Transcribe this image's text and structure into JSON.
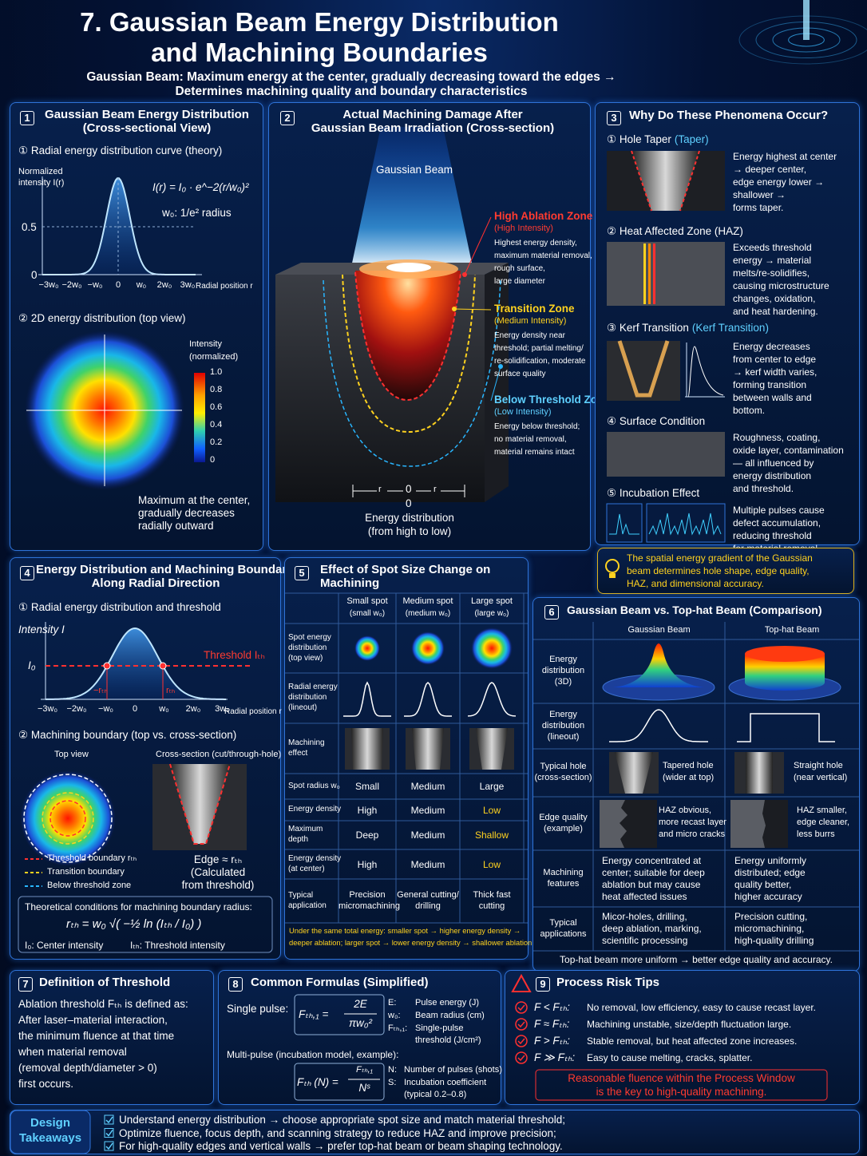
{
  "header": {
    "title": [
      "7. Gaussian Beam Energy Distribution",
      "and Machining Boundaries"
    ],
    "subtitle": [
      "Gaussian Beam: Maximum energy at the center, gradually decreasing toward the edges →",
      "Determines machining quality and boundary characteristics"
    ]
  },
  "p1": {
    "num": "1",
    "title": [
      "Gaussian Beam Energy Distribution",
      "(Cross-sectional View)"
    ],
    "sub1": "① Radial energy distribution curve (theory)",
    "ylabel": [
      "Normalized",
      "intensity I(r)"
    ],
    "formula": "I(r) = I₀ · e^−2(r/w₀)²",
    "w0_note": "w₀:  1/e² radius",
    "yticks": [
      "0.5",
      "0"
    ],
    "xticks": [
      "−3w₀",
      "−2w₀",
      "−w₀",
      "0",
      "w₀",
      "2w₀",
      "3w₀"
    ],
    "xlabel": "Radial position r",
    "sub2": "② 2D energy distribution (top view)",
    "cbar_title": [
      "Intensity",
      "(normalized)"
    ],
    "cbar_ticks": [
      "1.0",
      "0.8",
      "0.6",
      "0.4",
      "0.2",
      "0"
    ],
    "note": [
      "Maximum at the center,",
      "gradually decreases",
      "radially outward"
    ]
  },
  "p2": {
    "num": "2",
    "title": [
      "Actual Machining Damage After",
      "Gaussian Beam Irradiation (Cross-section)"
    ],
    "beam": "Gaussian Beam",
    "zones": [
      {
        "name": "High Ablation Zone",
        "sub": "(High Intensity)",
        "desc": [
          "Highest energy density,",
          "maximum material removal,",
          "rough surface,",
          "large diameter"
        ]
      },
      {
        "name": "Transition Zone",
        "sub": "(Medium Intensity)",
        "desc": [
          "Energy density near",
          "threshold; partial melting/",
          "re-solidification, moderate",
          "surface quality"
        ]
      },
      {
        "name": "Below Threshold Zone",
        "sub": "(Low Intensity)",
        "desc": [
          "Energy below threshold;",
          "no material removal,",
          "material remains intact"
        ]
      }
    ],
    "axis": [
      "r",
      "0",
      "r"
    ],
    "zero": "0",
    "caption": [
      "Energy distribution",
      "(from high to low)"
    ]
  },
  "p3": {
    "num": "3",
    "title": "Why Do These Phenomena Occur?",
    "items": [
      {
        "head": "① Hole Taper",
        "paren": "(Taper)",
        "text": [
          "Energy highest at center",
          "→ deeper center,",
          "edge energy lower →",
          "shallower →",
          "forms taper."
        ]
      },
      {
        "head": "② Heat Affected Zone (HAZ)",
        "text": [
          "Exceeds threshold",
          "energy → material",
          "melts/re-solidifies,",
          "causing microstructure",
          "changes, oxidation,",
          "and heat hardening."
        ]
      },
      {
        "head": "③ Kerf Transition",
        "paren": "(Kerf Transition)",
        "text": [
          "Energy decreases",
          "from center to edge",
          "→ kerf width varies,",
          "forming transition",
          "between walls and",
          "bottom."
        ]
      },
      {
        "head": "④ Surface Condition",
        "text": [
          "Roughness, coating,",
          "oxide layer, contamination",
          "— all influenced by",
          "energy distribution",
          "and threshold."
        ]
      },
      {
        "head": "⑤ Incubation Effect",
        "text": [
          "Multiple pulses cause",
          "defect accumulation,",
          "reducing threshold",
          "for material removal."
        ]
      }
    ],
    "tip": [
      "The spatial energy gradient of the Gaussian",
      "beam determines hole shape, edge quality,",
      "HAZ, and dimensional accuracy."
    ]
  },
  "p4": {
    "num": "4",
    "title": [
      "Energy Distribution and Machining Boundary",
      "Along Radial Direction"
    ],
    "sub1": "① Radial energy distribution and threshold",
    "ylabel": "Intensity I",
    "i0": "I₀",
    "threshold": "Threshold Iₜₕ",
    "rth_neg": "−rₜₕ",
    "rth": "rₜₕ",
    "xticks": [
      "−3w₀",
      "−2w₀",
      "−w₀",
      "0",
      "w₀",
      "2w₀",
      "3w₀"
    ],
    "xlabel": "Radial position r",
    "sub2": "② Machining boundary (top vs. cross-section)",
    "top_view": "Top view",
    "cross": "Cross-section (cut/through-hole)",
    "legend": [
      "Threshold boundary rₜₕ",
      "Transition boundary",
      "Below threshold zone"
    ],
    "edge": [
      "Edge ≈ rₜₕ",
      "(Calculated",
      "from threshold)"
    ],
    "cond_title": "Theoretical conditions for machining boundary radius:",
    "formula": "rₜₕ = w₀ √( −½ ln (Iₜₕ / I₀) )",
    "defs": [
      "I₀: Center intensity",
      "Iₜₕ:  Threshold intensity"
    ]
  },
  "p5": {
    "num": "5",
    "title": [
      "Effect of Spot Size Change on",
      "Machining"
    ],
    "cols": [
      [
        "Small spot",
        "(small w₀)"
      ],
      [
        "Medium spot",
        "(medium w₀)"
      ],
      [
        "Large spot",
        "(large w₀)"
      ]
    ],
    "rows": [
      {
        "label": [
          "Spot energy",
          "distribution",
          "(top view)"
        ]
      },
      {
        "label": [
          "Radial energy",
          "distribution",
          "(lineout)"
        ]
      },
      {
        "label": [
          "Machining",
          "effect"
        ]
      },
      {
        "label": [
          "Spot radius w₀"
        ],
        "cells": [
          [
            "Small"
          ],
          [
            "Medium"
          ],
          [
            "Large"
          ]
        ]
      },
      {
        "label": [
          "Energy density"
        ],
        "cells": [
          [
            "High"
          ],
          [
            "Medium"
          ],
          [
            "Low"
          ]
        ]
      },
      {
        "label": [
          "Maximum",
          "depth"
        ],
        "cells": [
          [
            "Deep"
          ],
          [
            "Medium"
          ],
          [
            "Shallow"
          ]
        ]
      },
      {
        "label": [
          "Energy density",
          "(at center)"
        ],
        "cells": [
          [
            "High"
          ],
          [
            "Medium"
          ],
          [
            "Low"
          ]
        ]
      },
      {
        "label": [
          "Typical",
          "application"
        ],
        "cells": [
          [
            "Precision",
            "micromachining"
          ],
          [
            "General cutting/",
            "drilling"
          ],
          [
            "Thick fast",
            "cutting"
          ]
        ]
      }
    ],
    "note": [
      "Under the same total energy: smaller spot → higher energy density →",
      "deeper ablation; larger spot → lower energy density → shallower ablation."
    ]
  },
  "p6": {
    "num": "6",
    "title": "Gaussian Beam vs. Top-hat Beam (Comparison)",
    "cols": [
      "Gaussian Beam",
      "Top-hat Beam"
    ],
    "rows": [
      {
        "label": [
          "Energy",
          "distribution",
          "(3D)"
        ]
      },
      {
        "label": [
          "Energy",
          "distribution",
          "(lineout)"
        ]
      },
      {
        "label": [
          "Typical hole",
          "(cross-section)"
        ],
        "cells": [
          [
            "Tapered hole",
            "(wider at top)"
          ],
          [
            "Straight hole",
            "(near vertical)"
          ]
        ]
      },
      {
        "label": [
          "Edge quality",
          "(example)"
        ],
        "cells": [
          [
            "HAZ obvious,",
            "more recast layer",
            "and micro cracks"
          ],
          [
            "HAZ smaller,",
            "edge cleaner,",
            "less burrs"
          ]
        ]
      },
      {
        "label": [
          "Machining",
          "features"
        ],
        "cells": [
          [
            "Energy concentrated at",
            "center; suitable for deep",
            "ablation but may cause",
            "heat affected issues"
          ],
          [
            "Energy uniformly",
            "distributed; edge",
            "quality better,",
            "higher accuracy"
          ]
        ]
      },
      {
        "label": [
          "Typical",
          "applications"
        ],
        "cells": [
          [
            "Micor-holes, drilling,",
            "deep ablation, marking,",
            "scientific processing"
          ],
          [
            "Precision cutting,",
            "micromachining,",
            "high-quality drilling"
          ]
        ]
      }
    ],
    "footer": "Top-hat beam more uniform → better edge quality and accuracy."
  },
  "p7": {
    "num": "7",
    "title": "Definition of Threshold",
    "lines": [
      "Ablation threshold Fₜₕ is defined as:",
      "After laser–material interaction,",
      "the minimum fluence at that time",
      "when material removal",
      "(removal depth/diameter > 0)",
      "first occurs."
    ]
  },
  "p8": {
    "num": "8",
    "title": "Common Formulas (Simplified)",
    "single": "Single pulse:",
    "f1_lhs": "Fₜₕ,₁ =",
    "f1_num": "2E",
    "f1_den": "πw₀²",
    "vars1": [
      {
        "k": "E:",
        "v": [
          "Pulse energy (J)"
        ]
      },
      {
        "k": "w₀:",
        "v": [
          "Beam radius (cm)"
        ]
      },
      {
        "k": "Fₜₕ,₁:",
        "v": [
          "Single-pulse",
          "threshold (J/cm²)"
        ]
      }
    ],
    "multi": "Multi-pulse (incubation model, example):",
    "f2_lhs": "Fₜₕ (N) =",
    "f2_num": "Fₜₕ,₁",
    "f2_den": "Nˢ",
    "vars2": [
      {
        "k": "N:",
        "v": [
          "Number of pulses (shots)"
        ]
      },
      {
        "k": "S:",
        "v": [
          "Incubation coefficient",
          "(typical 0.2–0.8)"
        ]
      }
    ]
  },
  "p9": {
    "num": "9",
    "title": "Process Risk Tips",
    "items": [
      {
        "c": "F < Fₜₕ:",
        "t": "No removal, low efficiency, easy to cause recast layer."
      },
      {
        "c": "F ≈ Fₜₕ:",
        "t": "Machining unstable, size/depth fluctuation large."
      },
      {
        "c": "F > Fₜₕ:",
        "t": "Stable removal, but heat affected zone increases."
      },
      {
        "c": "F ≫ Fₜₕ:",
        "t": "Easy to cause melting, cracks, splatter."
      }
    ],
    "banner": [
      "Reasonable fluence within the Process Window",
      "is the key to high-quality machining."
    ]
  },
  "takeaways": {
    "label": [
      "Design",
      "Takeaways"
    ],
    "items": [
      "Understand energy distribution → choose appropriate spot size and match material threshold;",
      "Optimize fluence, focus depth, and scanning strategy to reduce HAZ and improve precision;",
      "For high-quality edges and vertical walls → prefer top-hat beam or beam shaping technology."
    ]
  }
}
